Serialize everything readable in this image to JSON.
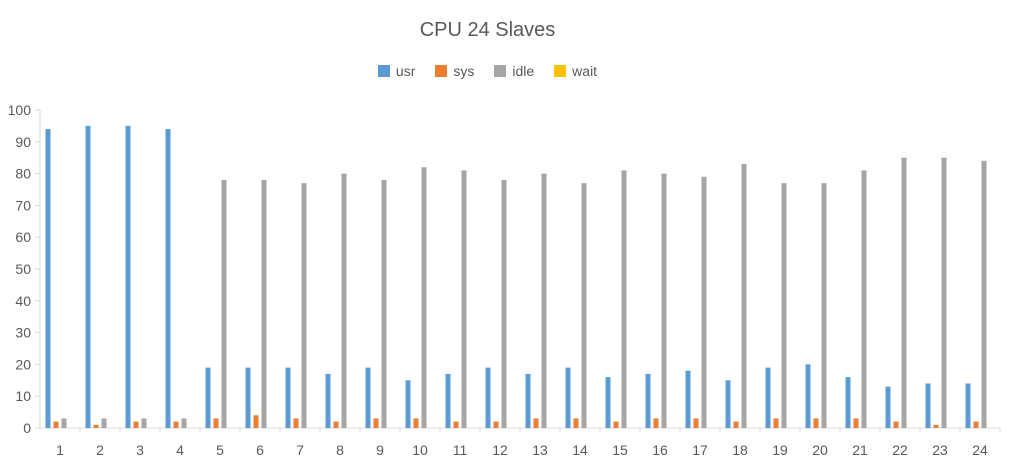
{
  "chart_data": {
    "type": "bar",
    "title": "CPU 24 Slaves",
    "xlabel": "",
    "ylabel": "",
    "ylim": [
      0,
      100
    ],
    "yticks": [
      0,
      10,
      20,
      30,
      40,
      50,
      60,
      70,
      80,
      90,
      100
    ],
    "grid": false,
    "legend_position": "top",
    "categories": [
      "1",
      "2",
      "3",
      "4",
      "5",
      "6",
      "7",
      "8",
      "9",
      "10",
      "11",
      "12",
      "13",
      "14",
      "15",
      "16",
      "17",
      "18",
      "19",
      "20",
      "21",
      "22",
      "23",
      "24"
    ],
    "series": [
      {
        "name": "usr",
        "color": "#5B9BD5",
        "values": [
          94,
          95,
          95,
          94,
          19,
          19,
          19,
          17,
          19,
          15,
          17,
          19,
          17,
          19,
          16,
          17,
          18,
          15,
          19,
          20,
          16,
          13,
          14,
          14
        ]
      },
      {
        "name": "sys",
        "color": "#ED7D31",
        "values": [
          2,
          1,
          2,
          2,
          3,
          4,
          3,
          2,
          3,
          3,
          2,
          2,
          3,
          3,
          2,
          3,
          3,
          2,
          3,
          3,
          3,
          2,
          1,
          2
        ]
      },
      {
        "name": "idle",
        "color": "#A5A5A5",
        "values": [
          3,
          3,
          3,
          3,
          78,
          78,
          77,
          80,
          78,
          82,
          81,
          78,
          80,
          77,
          81,
          80,
          79,
          83,
          77,
          77,
          81,
          85,
          85,
          84
        ]
      },
      {
        "name": "wait",
        "color": "#FFC000",
        "values": [
          0,
          0,
          0,
          0,
          0,
          0,
          0,
          0,
          0,
          0,
          0,
          0,
          0,
          0,
          0,
          0,
          0,
          0,
          0,
          0,
          0,
          0,
          0,
          0
        ]
      }
    ]
  }
}
